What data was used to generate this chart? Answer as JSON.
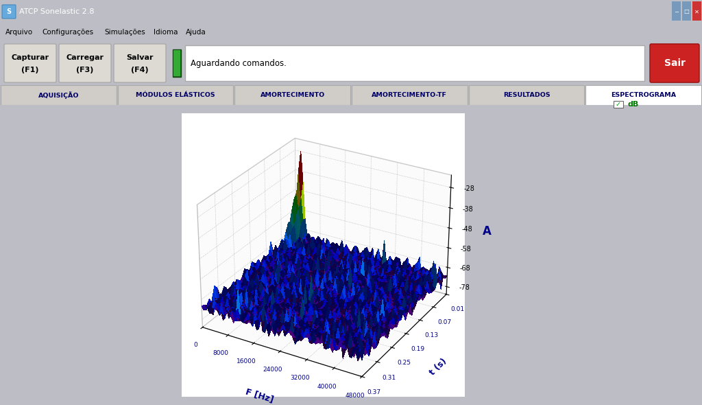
{
  "title": "ATCP Sonelastic 2.8",
  "menu_items": [
    "Arquivo",
    "Configurações",
    "Simulações",
    "Idioma",
    "Ajuda"
  ],
  "buttons": [
    "Capturar\n(F1)",
    "Carregar\n(F3)",
    "Salvar\n(F4)"
  ],
  "status_text": "Aguardando comandos.",
  "sair_text": "Sair",
  "tabs": [
    "AQUISIÇÃO",
    "MÓDULOS ELÁSTICOS",
    "AMORTECIMENTO",
    "AMORTECIMENTO-TF",
    "RESULTADOS",
    "ESPECTROGRAMA"
  ],
  "active_tab": "ESPECTROGRAMA",
  "db_label": "✓dB",
  "z_label": "A",
  "x_label": "F [Hz]",
  "y_label": "t (s)",
  "z_ticks": [
    -28,
    -38,
    -48,
    -58,
    -68,
    -78
  ],
  "x_ticks": [
    0,
    8000,
    16000,
    24000,
    32000,
    40000,
    48000
  ],
  "y_ticks": [
    0.01,
    0.07,
    0.13,
    0.19,
    0.25,
    0.31,
    0.37
  ],
  "bg_color": "#bdbdc5",
  "window_title_bg": "#4a7ab5",
  "tab_bg": "#d0ccc8",
  "tab_active_bg": "#ffffff",
  "plot_bg": "#ffffff",
  "sair_color": "#cc2222",
  "noise_floor": -73,
  "peak_value": -28,
  "peak_freq_idx": 3,
  "elev": 28,
  "azim": -60
}
